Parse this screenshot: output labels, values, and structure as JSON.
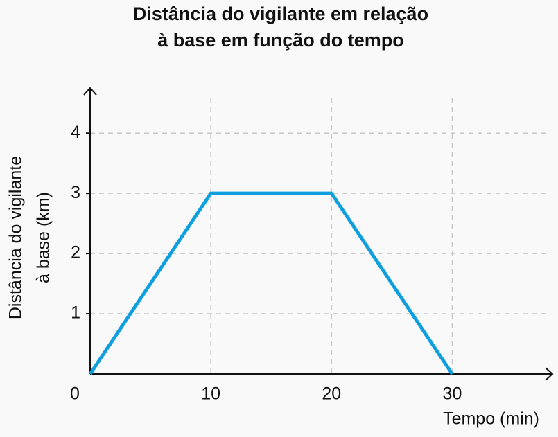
{
  "chart_data": {
    "type": "line",
    "title": [
      "Distância do vigilante em relação",
      "à base em função do tempo"
    ],
    "y_label": [
      "Distância do vigilante",
      "à base (km)"
    ],
    "x_label": "Tempo (min)",
    "x": [
      0,
      10,
      20,
      30
    ],
    "series": [
      {
        "color": "#0f9fdf",
        "values": [
          0,
          3,
          3,
          0
        ]
      }
    ],
    "xlim": [
      0,
      38.3
    ],
    "ylim": [
      0,
      4.75
    ],
    "xticks": [
      0,
      10,
      20,
      30
    ],
    "yticks": [
      1,
      2,
      3,
      4
    ],
    "grid": true
  }
}
